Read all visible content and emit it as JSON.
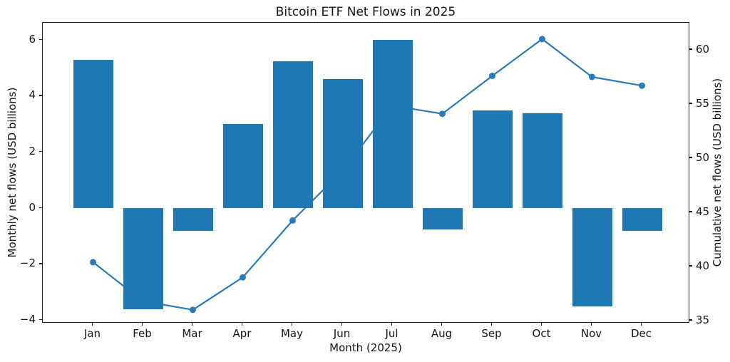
{
  "figure": {
    "title": "Bitcoin ETF Net Flows in 2025"
  },
  "chart_data": {
    "type": "combo-bar-line",
    "title": "Bitcoin ETF Net Flows in 2025",
    "xlabel": "Month (2025)",
    "ylabel_left": "Monthly net flows (USD billions)",
    "ylabel_right": "Cumulative net flows (USD billions)",
    "categories": [
      "Jan",
      "Feb",
      "Mar",
      "Apr",
      "May",
      "Jun",
      "Jul",
      "Aug",
      "Sep",
      "Oct",
      "Nov",
      "Dec"
    ],
    "series": [
      {
        "name": "Monthly net flows",
        "type": "bar",
        "axis": "left",
        "color": "#1f77b4",
        "values": [
          5.3,
          -3.6,
          -0.8,
          3.0,
          5.25,
          4.6,
          6.0,
          -0.75,
          3.5,
          3.4,
          -3.5,
          -0.8
        ]
      },
      {
        "name": "Cumulative net flows",
        "type": "line",
        "axis": "right",
        "color": "#2a7ab9",
        "marker": "circle",
        "values": [
          40.4,
          36.8,
          36.0,
          39.0,
          44.25,
          48.85,
          54.85,
          54.1,
          57.6,
          61.0,
          57.5,
          56.7
        ]
      }
    ],
    "left_axis": {
      "tick_values": [
        6,
        4,
        2,
        0,
        -2,
        -4
      ],
      "tick_labels": [
        "6",
        "4",
        "2",
        "0",
        "−2",
        "−4"
      ],
      "range": [
        -4.13,
        6.6
      ]
    },
    "right_axis": {
      "tick_values": [
        60,
        55,
        50,
        45,
        40,
        35
      ],
      "tick_labels": [
        "60",
        "55",
        "50",
        "45",
        "40",
        "35"
      ],
      "range": [
        33.4,
        62.5
      ]
    },
    "grid": false,
    "legend": "none",
    "notes": "Line markers for Jun and Jul are hidden behind the bars"
  },
  "colors": {
    "bar": "#1f77b4",
    "line": "#2a7ab9",
    "spine": "#1d1d1d",
    "text": "#141414",
    "background": "#ffffff"
  }
}
